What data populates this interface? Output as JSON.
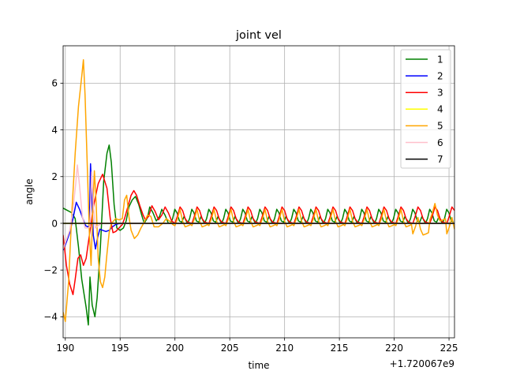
{
  "chart_data": {
    "type": "line",
    "title": "joint vel",
    "xlabel": "time",
    "ylabel": "angle",
    "x_offset_label": "+1.720067e9",
    "xlim": [
      189.8,
      225.5
    ],
    "ylim": [
      -4.9,
      7.6
    ],
    "xticks": [
      190,
      195,
      200,
      205,
      210,
      215,
      220,
      225
    ],
    "yticks": [
      -4,
      -2,
      0,
      2,
      4,
      6
    ],
    "grid": true,
    "legend_position": "top-right",
    "series": [
      {
        "name": "1",
        "color": "#008000",
        "points": [
          [
            189.8,
            0.65
          ],
          [
            190.2,
            0.55
          ],
          [
            190.6,
            0.45
          ],
          [
            190.9,
            0.2
          ],
          [
            191.2,
            -1.0
          ],
          [
            191.5,
            -2.4
          ],
          [
            191.9,
            -3.6
          ],
          [
            192.1,
            -4.35
          ],
          [
            192.25,
            -2.3
          ],
          [
            192.45,
            -3.5
          ],
          [
            192.7,
            -4.0
          ],
          [
            192.9,
            -3.2
          ],
          [
            193.2,
            -1.0
          ],
          [
            193.5,
            1.8
          ],
          [
            193.8,
            3.0
          ],
          [
            194.0,
            3.35
          ],
          [
            194.2,
            2.6
          ],
          [
            194.45,
            0.8
          ],
          [
            194.7,
            -0.2
          ],
          [
            195.0,
            -0.3
          ],
          [
            195.3,
            -0.2
          ],
          [
            195.55,
            0.1
          ],
          [
            195.8,
            0.7
          ],
          [
            196.1,
            1.0
          ],
          [
            196.4,
            1.15
          ],
          [
            196.7,
            0.8
          ],
          [
            197.0,
            0.3
          ],
          [
            197.2,
            0.0
          ],
          [
            197.5,
            0.25
          ],
          [
            197.7,
            0.7
          ],
          [
            198.0,
            0.45
          ],
          [
            198.3,
            0.1
          ],
          [
            198.6,
            0.3
          ],
          [
            198.8,
            0.6
          ],
          [
            199.1,
            0.35
          ],
          [
            199.4,
            0.0
          ]
        ]
      },
      {
        "name": "2",
        "color": "#0000ff",
        "points": [
          [
            189.8,
            -1.15
          ],
          [
            190.1,
            -0.8
          ],
          [
            190.4,
            -0.4
          ],
          [
            190.7,
            0.2
          ],
          [
            191.0,
            0.9
          ],
          [
            191.3,
            0.6
          ],
          [
            191.6,
            0.2
          ],
          [
            191.85,
            -0.1
          ],
          [
            192.05,
            -0.15
          ],
          [
            192.2,
            -0.1
          ],
          [
            192.3,
            2.55
          ],
          [
            192.4,
            1.4
          ],
          [
            192.55,
            -0.5
          ],
          [
            192.75,
            -1.1
          ],
          [
            192.95,
            -0.6
          ],
          [
            193.15,
            -0.25
          ],
          [
            193.4,
            -0.3
          ],
          [
            193.7,
            -0.35
          ],
          [
            194.0,
            -0.3
          ],
          [
            194.3,
            -0.15
          ],
          [
            194.6,
            -0.05
          ],
          [
            195.0,
            0.0
          ],
          [
            225.5,
            0.0
          ]
        ]
      },
      {
        "name": "3",
        "color": "#ff0000",
        "points": [
          [
            189.8,
            -0.5
          ],
          [
            190.1,
            -1.8
          ],
          [
            190.4,
            -2.6
          ],
          [
            190.7,
            -3.05
          ],
          [
            190.9,
            -2.4
          ],
          [
            191.15,
            -1.5
          ],
          [
            191.4,
            -1.35
          ],
          [
            191.65,
            -1.8
          ],
          [
            191.9,
            -1.5
          ],
          [
            192.2,
            -0.5
          ],
          [
            192.6,
            0.8
          ],
          [
            193.0,
            1.7
          ],
          [
            193.4,
            2.1
          ],
          [
            193.8,
            1.5
          ],
          [
            194.1,
            0.2
          ],
          [
            194.35,
            -0.4
          ],
          [
            194.6,
            -0.35
          ],
          [
            194.9,
            -0.2
          ],
          [
            195.2,
            -0.05
          ],
          [
            195.4,
            0.2
          ],
          [
            195.7,
            0.7
          ],
          [
            196.0,
            1.2
          ],
          [
            196.25,
            1.4
          ],
          [
            196.5,
            1.2
          ],
          [
            196.8,
            0.75
          ],
          [
            197.1,
            0.35
          ],
          [
            197.3,
            0.15
          ],
          [
            197.6,
            0.3
          ],
          [
            197.9,
            0.75
          ],
          [
            198.2,
            0.5
          ],
          [
            198.5,
            0.15
          ],
          [
            198.8,
            0.35
          ],
          [
            199.1,
            0.7
          ],
          [
            199.4,
            0.45
          ],
          [
            199.7,
            0.1
          ]
        ]
      },
      {
        "name": "4",
        "color": "#ffff00",
        "points": [
          [
            189.8,
            0.0
          ],
          [
            225.5,
            0.0
          ]
        ]
      },
      {
        "name": "5",
        "color": "#ffa500",
        "points": [
          [
            189.8,
            -3.8
          ],
          [
            190.0,
            -4.2
          ],
          [
            190.3,
            -2.5
          ],
          [
            190.6,
            0.5
          ],
          [
            190.9,
            3.0
          ],
          [
            191.2,
            5.0
          ],
          [
            191.5,
            6.3
          ],
          [
            191.65,
            7.0
          ],
          [
            191.8,
            5.5
          ],
          [
            192.0,
            2.5
          ],
          [
            192.2,
            -0.5
          ],
          [
            192.35,
            -1.8
          ],
          [
            192.5,
            0.5
          ],
          [
            192.65,
            2.25
          ],
          [
            192.8,
            1.0
          ],
          [
            193.0,
            -1.5
          ],
          [
            193.2,
            -2.5
          ],
          [
            193.4,
            -2.75
          ],
          [
            193.6,
            -2.3
          ],
          [
            193.8,
            -1.3
          ],
          [
            194.0,
            -0.4
          ],
          [
            194.2,
            0.0
          ],
          [
            194.4,
            0.1
          ],
          [
            194.6,
            0.2
          ],
          [
            194.9,
            0.15
          ],
          [
            195.2,
            0.2
          ],
          [
            195.4,
            1.0
          ],
          [
            195.6,
            1.2
          ],
          [
            195.8,
            0.3
          ],
          [
            196.0,
            -0.3
          ],
          [
            196.3,
            -0.65
          ],
          [
            196.6,
            -0.5
          ],
          [
            196.9,
            -0.2
          ],
          [
            197.2,
            0.05
          ],
          [
            197.5,
            0.35
          ],
          [
            197.8,
            0.3
          ],
          [
            198.1,
            -0.15
          ],
          [
            198.5,
            -0.15
          ],
          [
            198.9,
            0.0
          ],
          [
            199.2,
            0.2
          ],
          [
            199.5,
            0.1
          ],
          [
            199.8,
            -0.05
          ]
        ]
      },
      {
        "name": "6",
        "color": "#ffc0cb",
        "points": [
          [
            189.8,
            -1.1
          ],
          [
            190.1,
            -0.7
          ],
          [
            190.4,
            -0.3
          ],
          [
            190.7,
            0.6
          ],
          [
            190.95,
            1.7
          ],
          [
            191.1,
            2.5
          ],
          [
            191.3,
            1.6
          ],
          [
            191.55,
            0.3
          ],
          [
            191.8,
            -0.2
          ],
          [
            192.05,
            -0.2
          ],
          [
            192.25,
            -0.15
          ],
          [
            192.4,
            2.2
          ],
          [
            192.55,
            0.8
          ],
          [
            192.75,
            -0.2
          ],
          [
            193.0,
            -0.1
          ],
          [
            193.3,
            0.0
          ],
          [
            225.5,
            0.0
          ]
        ]
      },
      {
        "name": "7",
        "color": "#000000",
        "points": [
          [
            189.8,
            0.0
          ],
          [
            225.5,
            0.0
          ]
        ]
      }
    ]
  }
}
